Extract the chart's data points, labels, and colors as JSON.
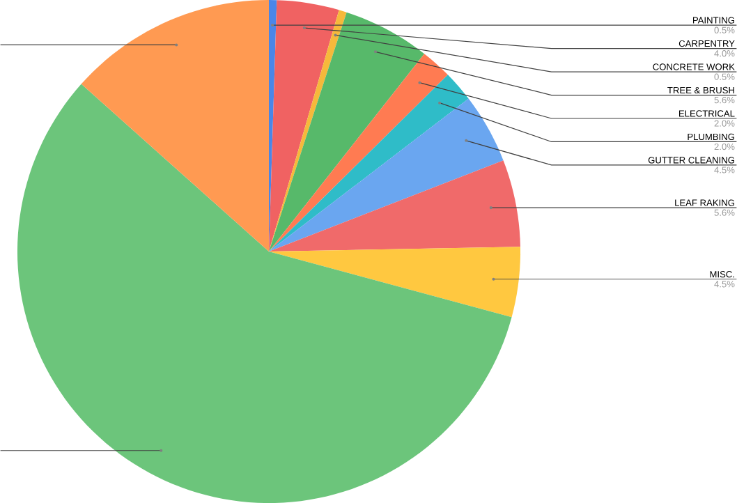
{
  "chart_data": {
    "type": "pie",
    "categories": [
      "PAINTING",
      "CARPENTRY",
      "CONCRETE WORK",
      "TREE & BRUSH",
      "ELECTRICAL",
      "PLUMBING",
      "GUTTER CLEANING",
      "LEAF RAKING",
      "MISC.",
      null,
      null
    ],
    "values": [
      0.5,
      4.0,
      0.5,
      5.6,
      2.0,
      2.0,
      4.5,
      5.6,
      4.5,
      57.4,
      13.4
    ],
    "value_labels": [
      "0.5%",
      "4.0%",
      "0.5%",
      "5.6%",
      "2.0%",
      "2.0%",
      "4.5%",
      "5.6%",
      "4.5%",
      null,
      null
    ],
    "colors": [
      "#4a86e8",
      "#f06262",
      "#f6b93b",
      "#57b96a",
      "#ff7b52",
      "#2fbcc8",
      "#6aa6f0",
      "#f06a6a",
      "#ffc840",
      "#6cc57b",
      "#ff9a52"
    ]
  }
}
